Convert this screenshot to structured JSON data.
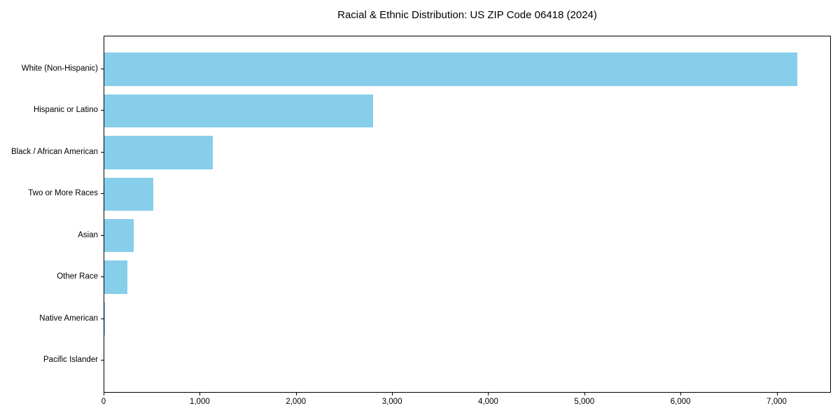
{
  "chart_data": {
    "type": "bar",
    "orientation": "horizontal",
    "title": "Racial & Ethnic Distribution: US ZIP Code 06418 (2024)",
    "categories": [
      "White (Non-Hispanic)",
      "Hispanic or Latino",
      "Black / African American",
      "Two or More Races",
      "Asian",
      "Other Race",
      "Native American",
      "Pacific Islander"
    ],
    "values": [
      7204,
      2793,
      1131,
      506,
      304,
      243,
      10,
      0
    ],
    "xlabel": "",
    "ylabel": "",
    "x_ticks": [
      0,
      1000,
      2000,
      3000,
      4000,
      5000,
      6000,
      7000
    ],
    "x_tick_labels": [
      "0",
      "1,000",
      "2,000",
      "3,000",
      "4,000",
      "5,000",
      "6,000",
      "7,000"
    ],
    "xlim": [
      0,
      7564
    ],
    "bar_color": "#87CEEB",
    "grid": false,
    "legend_position": "none"
  }
}
